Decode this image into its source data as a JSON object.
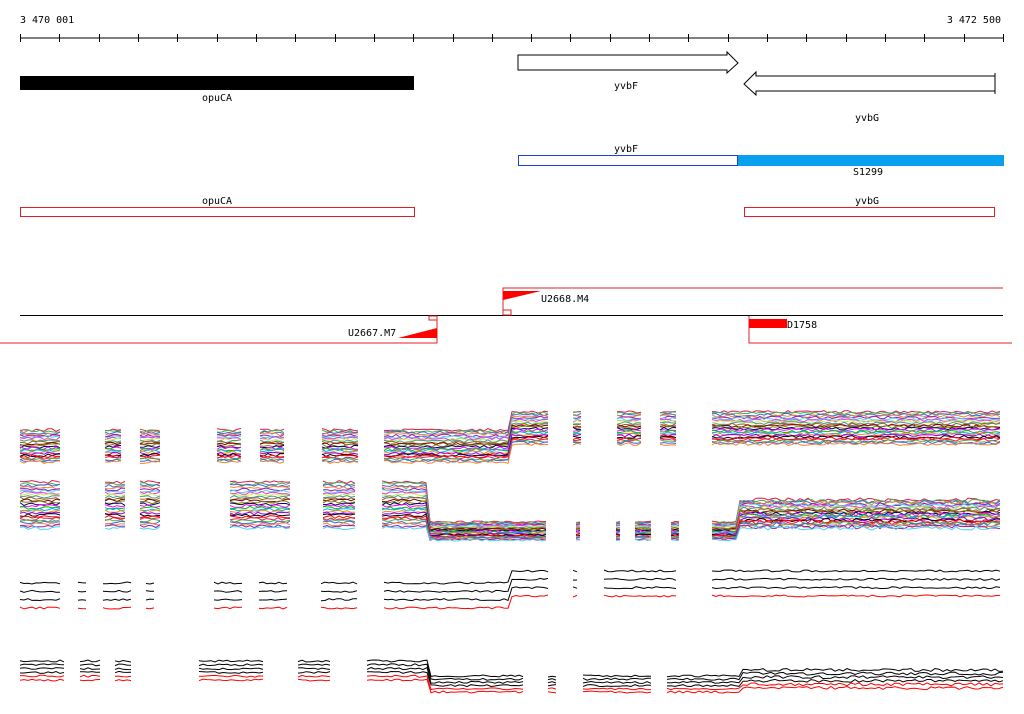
{
  "ruler": {
    "start_label": "3 470 001",
    "end_label": "3 472 500",
    "tick_count": 26
  },
  "annotation": {
    "genes": [
      {
        "label": "opuCA",
        "style": "filled",
        "strand": "none"
      },
      {
        "label": "yvbF",
        "style": "outline",
        "strand": "+"
      },
      {
        "label": "yvbG",
        "style": "outline",
        "strand": "-"
      }
    ],
    "transcripts": [
      {
        "label": "yvbF",
        "color": "#2040d0"
      },
      {
        "label": "S1299",
        "color": "#0aa0f0"
      }
    ],
    "predicted_genes": [
      {
        "label": "opuCA",
        "color": "#e02020"
      },
      {
        "label": "yvbG",
        "color": "#e02020"
      }
    ],
    "segments": [
      {
        "label": "U2668.M4",
        "type": "up-shift"
      },
      {
        "label": "U2667.M7",
        "type": "down-shift"
      },
      {
        "label": "D1758",
        "type": "down-block"
      }
    ]
  },
  "colors": {
    "line": "#000000",
    "feature_fill": "#000000",
    "segment_red": "#ff0000",
    "transcript_blue": "#2040d0",
    "transcript_cyan": "#0aa0f0",
    "profile_palette": [
      "#e6194b",
      "#3cb44b",
      "#4363d8",
      "#f58231",
      "#911eb4",
      "#42d4f4",
      "#f032e6",
      "#bfef45",
      "#469990",
      "#9a6324",
      "#800000",
      "#808000",
      "#000075",
      "#ff00ff",
      "#00c000",
      "#00aaff",
      "#ff8800",
      "#8800ff",
      "#000000",
      "#ff0000"
    ]
  }
}
